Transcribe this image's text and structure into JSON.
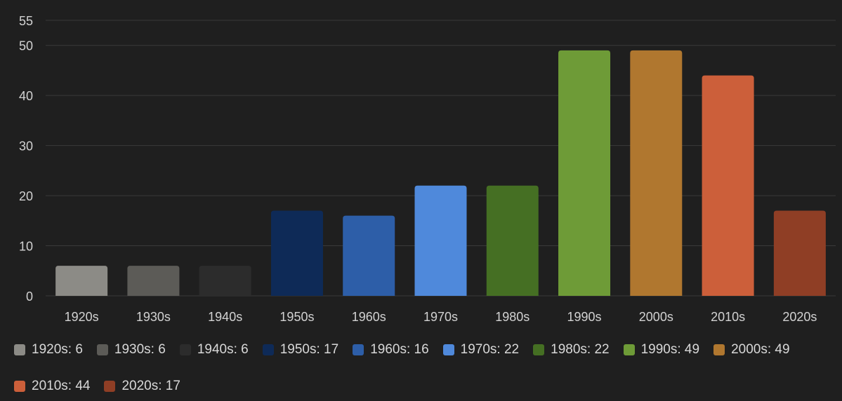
{
  "chart_data": {
    "type": "bar",
    "title": "",
    "xlabel": "",
    "ylabel": "",
    "categories": [
      "1920s",
      "1930s",
      "1940s",
      "1950s",
      "1960s",
      "1970s",
      "1980s",
      "1990s",
      "2000s",
      "2010s",
      "2020s"
    ],
    "values": [
      6,
      6,
      6,
      17,
      16,
      22,
      22,
      49,
      49,
      44,
      17
    ],
    "colors": [
      "#8c8b86",
      "#5c5b57",
      "#2c2c2c",
      "#0e2a57",
      "#2d5ea8",
      "#4f89db",
      "#456f23",
      "#6e9b37",
      "#b0772f",
      "#cc5f3a",
      "#8f3e25"
    ],
    "ylim": [
      0,
      55
    ],
    "yticks": [
      0,
      10,
      20,
      30,
      40,
      50,
      55
    ],
    "grid": true,
    "legend_position": "bottom",
    "legend": [
      "1920s: 6",
      "1930s: 6",
      "1940s: 6",
      "1950s: 17",
      "1960s: 16",
      "1970s: 22",
      "1980s: 22",
      "1990s: 49",
      "2000s: 49",
      "2010s: 44",
      "2020s: 17"
    ]
  }
}
